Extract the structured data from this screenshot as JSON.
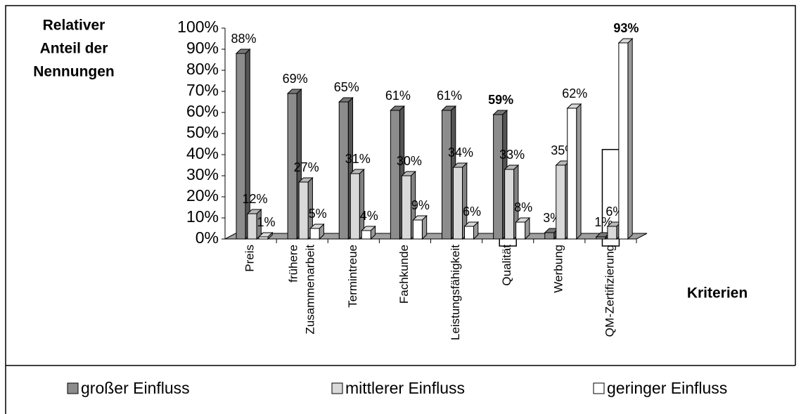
{
  "chart_data": {
    "type": "bar3d",
    "y_label": [
      "Relativer",
      "Anteil der",
      "Nennungen"
    ],
    "x_label": "Kriterien",
    "categories": [
      "Preis",
      "frühere Zusammenarbeit",
      "Termintreue",
      "Fachkunde",
      "Leistungsfähigkeit",
      "Qualität",
      "Werbung",
      "QM-Zertifizierung"
    ],
    "series": [
      {
        "name": "großer Einfluss",
        "color": "#8c8c8c",
        "values": [
          88,
          69,
          65,
          61,
          61,
          59,
          3,
          1
        ],
        "value_labels": [
          "88%",
          "69%",
          "65%",
          "61%",
          "61%",
          "59%",
          "3%",
          "1%"
        ]
      },
      {
        "name": "mittlerer Einfluss",
        "color": "#d9d9d9",
        "values": [
          12,
          27,
          31,
          30,
          34,
          33,
          35,
          6
        ],
        "value_labels": [
          "12%",
          "27%",
          "31%",
          "30%",
          "34%",
          "33%",
          "35%",
          "6%"
        ]
      },
      {
        "name": "geringer Einfluss",
        "color": "#ffffff",
        "values": [
          1,
          5,
          4,
          9,
          6,
          8,
          62,
          93
        ],
        "value_labels": [
          "1%",
          "5%",
          "4%",
          "9%",
          "6%",
          "8%",
          "62%",
          "93%"
        ]
      }
    ],
    "ylim": [
      0,
      100
    ],
    "yticks": [
      {
        "value": 0,
        "label": "0%"
      },
      {
        "value": 10,
        "label": "10%"
      },
      {
        "value": 20,
        "label": "20%"
      },
      {
        "value": 30,
        "label": "30%"
      },
      {
        "value": 40,
        "label": "40%"
      },
      {
        "value": 50,
        "label": "50%"
      },
      {
        "value": 60,
        "label": "60%"
      },
      {
        "value": 70,
        "label": "70%"
      },
      {
        "value": 80,
        "label": "80%"
      },
      {
        "value": 90,
        "label": "90%"
      },
      {
        "value": 100,
        "label": "100%"
      }
    ],
    "legend": "bottom"
  }
}
